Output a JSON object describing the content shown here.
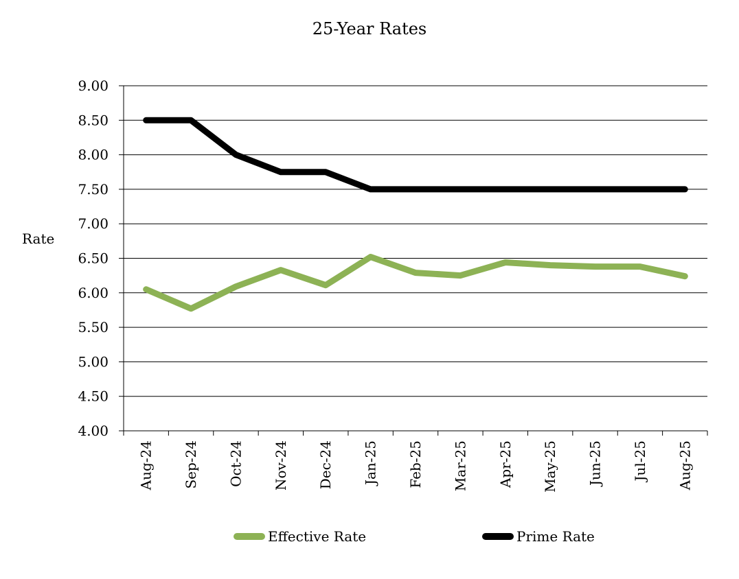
{
  "chart_data": {
    "type": "line",
    "title": "25-Year Rates",
    "xlabel": "",
    "ylabel": "Rate",
    "categories": [
      "Aug-24",
      "Sep-24",
      "Oct-24",
      "Nov-24",
      "Dec-24",
      "Jan-25",
      "Feb-25",
      "Mar-25",
      "Apr-25",
      "May-25",
      "Jun-25",
      "Jul-25",
      "Aug-25"
    ],
    "ylim": [
      4.0,
      9.0
    ],
    "yticks": [
      "4.00",
      "4.50",
      "5.00",
      "5.50",
      "6.00",
      "6.50",
      "7.00",
      "7.50",
      "8.00",
      "8.50",
      "9.00"
    ],
    "grid": true,
    "legend_position": "bottom",
    "series": [
      {
        "name": "Effective Rate",
        "color": "#8db255",
        "values": [
          6.05,
          5.77,
          6.09,
          6.33,
          6.11,
          6.52,
          6.29,
          6.25,
          6.44,
          6.4,
          6.38,
          6.38,
          6.24
        ]
      },
      {
        "name": "Prime Rate",
        "color": "#000000",
        "values": [
          8.5,
          8.5,
          8.0,
          7.75,
          7.75,
          7.5,
          7.5,
          7.5,
          7.5,
          7.5,
          7.5,
          7.5,
          7.5
        ]
      }
    ]
  }
}
